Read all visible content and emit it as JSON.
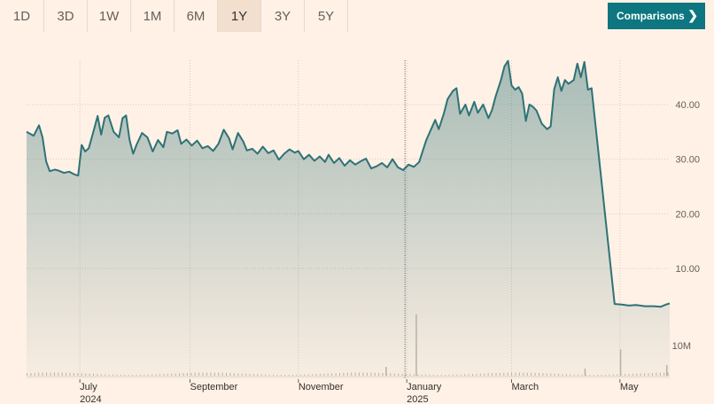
{
  "ranges": [
    "1D",
    "3D",
    "1W",
    "1M",
    "6M",
    "1Y",
    "3Y",
    "5Y"
  ],
  "active_range": "1Y",
  "comparisons_label": "Comparisons",
  "comparisons_icon": "chevron-right-icon",
  "colors": {
    "background": "#fff1e5",
    "line": "#2e7276",
    "accent": "#0d7680",
    "volume": "#b8b0a8"
  },
  "chart_data": {
    "type": "area",
    "y_ticks": [
      "40.00",
      "30.00",
      "20.00",
      "10.00"
    ],
    "y_tick_values": [
      40,
      30,
      20,
      10
    ],
    "ylim": [
      0,
      50
    ],
    "volume_tick": "10M",
    "x_ticks": [
      {
        "label": "July",
        "sub": "2024",
        "date": "2024-07-01"
      },
      {
        "label": "September",
        "sub": "",
        "date": "2024-09-01"
      },
      {
        "label": "November",
        "sub": "",
        "date": "2024-11-01"
      },
      {
        "label": "January",
        "sub": "2025",
        "date": "2025-01-01"
      },
      {
        "label": "March",
        "sub": "",
        "date": "2025-03-01"
      },
      {
        "label": "May",
        "sub": "",
        "date": "2025-05-01"
      }
    ],
    "start_date": "2024-06-01",
    "end_date": "2025-05-29",
    "series": [
      {
        "values": [
          [
            "2024-06-01",
            35.0
          ],
          [
            "2024-06-05",
            34.3
          ],
          [
            "2024-06-08",
            36.2
          ],
          [
            "2024-06-10",
            34.0
          ],
          [
            "2024-06-12",
            29.6
          ],
          [
            "2024-06-14",
            27.8
          ],
          [
            "2024-06-17",
            28.1
          ],
          [
            "2024-06-19",
            27.9
          ],
          [
            "2024-06-22",
            27.5
          ],
          [
            "2024-06-25",
            27.7
          ],
          [
            "2024-06-28",
            27.2
          ],
          [
            "2024-06-30",
            27.0
          ],
          [
            "2024-07-02",
            32.6
          ],
          [
            "2024-07-04",
            31.4
          ],
          [
            "2024-07-06",
            32.0
          ],
          [
            "2024-07-09",
            35.5
          ],
          [
            "2024-07-11",
            37.9
          ],
          [
            "2024-07-13",
            34.5
          ],
          [
            "2024-07-15",
            37.6
          ],
          [
            "2024-07-17",
            38.0
          ],
          [
            "2024-07-20",
            35.0
          ],
          [
            "2024-07-23",
            34.0
          ],
          [
            "2024-07-25",
            37.5
          ],
          [
            "2024-07-27",
            38.0
          ],
          [
            "2024-07-29",
            33.5
          ],
          [
            "2024-07-31",
            31.0
          ],
          [
            "2024-08-02",
            32.7
          ],
          [
            "2024-08-05",
            34.8
          ],
          [
            "2024-08-08",
            34.0
          ],
          [
            "2024-08-11",
            31.4
          ],
          [
            "2024-08-14",
            33.5
          ],
          [
            "2024-08-17",
            32.2
          ],
          [
            "2024-08-19",
            35.0
          ],
          [
            "2024-08-22",
            34.7
          ],
          [
            "2024-08-25",
            35.3
          ],
          [
            "2024-08-27",
            32.8
          ],
          [
            "2024-08-30",
            33.6
          ],
          [
            "2024-09-02",
            32.5
          ],
          [
            "2024-09-05",
            33.4
          ],
          [
            "2024-09-08",
            32.0
          ],
          [
            "2024-09-11",
            32.4
          ],
          [
            "2024-09-14",
            31.5
          ],
          [
            "2024-09-17",
            32.8
          ],
          [
            "2024-09-20",
            35.4
          ],
          [
            "2024-09-23",
            33.8
          ],
          [
            "2024-09-25",
            31.8
          ],
          [
            "2024-09-28",
            34.8
          ],
          [
            "2024-10-01",
            33.2
          ],
          [
            "2024-10-03",
            31.6
          ],
          [
            "2024-10-06",
            31.9
          ],
          [
            "2024-10-09",
            31.0
          ],
          [
            "2024-10-12",
            32.3
          ],
          [
            "2024-10-15",
            31.1
          ],
          [
            "2024-10-18",
            31.6
          ],
          [
            "2024-10-21",
            29.9
          ],
          [
            "2024-10-24",
            31.0
          ],
          [
            "2024-10-27",
            31.8
          ],
          [
            "2024-10-30",
            31.2
          ],
          [
            "2024-11-01",
            31.5
          ],
          [
            "2024-11-04",
            30.0
          ],
          [
            "2024-11-07",
            30.8
          ],
          [
            "2024-11-10",
            29.7
          ],
          [
            "2024-11-13",
            30.5
          ],
          [
            "2024-11-16",
            29.5
          ],
          [
            "2024-11-18",
            30.8
          ],
          [
            "2024-11-21",
            29.3
          ],
          [
            "2024-11-24",
            30.2
          ],
          [
            "2024-11-27",
            28.8
          ],
          [
            "2024-11-30",
            29.8
          ],
          [
            "2024-12-03",
            29.0
          ],
          [
            "2024-12-06",
            29.6
          ],
          [
            "2024-12-09",
            30.1
          ],
          [
            "2024-12-12",
            28.3
          ],
          [
            "2024-12-15",
            28.7
          ],
          [
            "2024-12-18",
            29.3
          ],
          [
            "2024-12-21",
            28.5
          ],
          [
            "2024-12-24",
            30.0
          ],
          [
            "2024-12-27",
            28.5
          ],
          [
            "2024-12-30",
            28.0
          ],
          [
            "2025-01-02",
            29.0
          ],
          [
            "2025-01-05",
            28.6
          ],
          [
            "2025-01-08",
            29.5
          ],
          [
            "2025-01-10",
            31.5
          ],
          [
            "2025-01-12",
            33.5
          ],
          [
            "2025-01-14",
            35.0
          ],
          [
            "2025-01-17",
            37.2
          ],
          [
            "2025-01-19",
            35.5
          ],
          [
            "2025-01-22",
            38.5
          ],
          [
            "2025-01-24",
            41.0
          ],
          [
            "2025-01-27",
            42.5
          ],
          [
            "2025-01-29",
            43.0
          ],
          [
            "2025-01-31",
            38.3
          ],
          [
            "2025-02-03",
            40.0
          ],
          [
            "2025-02-05",
            38.0
          ],
          [
            "2025-02-08",
            40.5
          ],
          [
            "2025-02-10",
            38.5
          ],
          [
            "2025-02-13",
            40.0
          ],
          [
            "2025-02-16",
            37.5
          ],
          [
            "2025-02-18",
            39.0
          ],
          [
            "2025-02-20",
            41.5
          ],
          [
            "2025-02-23",
            44.5
          ],
          [
            "2025-02-25",
            47.0
          ],
          [
            "2025-02-27",
            48.0
          ],
          [
            "2025-03-01",
            43.5
          ],
          [
            "2025-03-03",
            42.7
          ],
          [
            "2025-03-05",
            43.2
          ],
          [
            "2025-03-07",
            42.0
          ],
          [
            "2025-03-09",
            37.0
          ],
          [
            "2025-03-11",
            40.0
          ],
          [
            "2025-03-13",
            39.6
          ],
          [
            "2025-03-15",
            38.9
          ],
          [
            "2025-03-18",
            36.5
          ],
          [
            "2025-03-21",
            35.5
          ],
          [
            "2025-03-23",
            36.0
          ],
          [
            "2025-03-25",
            42.8
          ],
          [
            "2025-03-27",
            45.0
          ],
          [
            "2025-03-29",
            42.5
          ],
          [
            "2025-03-31",
            44.5
          ],
          [
            "2025-04-02",
            43.8
          ],
          [
            "2025-04-05",
            44.5
          ],
          [
            "2025-04-07",
            47.5
          ],
          [
            "2025-04-09",
            45.0
          ],
          [
            "2025-04-11",
            47.8
          ],
          [
            "2025-04-13",
            42.7
          ],
          [
            "2025-04-15",
            43.0
          ],
          [
            "2025-04-28",
            3.5
          ],
          [
            "2025-05-02",
            3.4
          ],
          [
            "2025-05-06",
            3.2
          ],
          [
            "2025-05-10",
            3.3
          ],
          [
            "2025-05-15",
            3.1
          ],
          [
            "2025-05-20",
            3.1
          ],
          [
            "2025-05-24",
            3.0
          ],
          [
            "2025-05-27",
            3.4
          ],
          [
            "2025-05-29",
            3.6
          ]
        ]
      }
    ],
    "volume_spikes": [
      {
        "date": "2025-01-06",
        "volume_m": 10.5
      },
      {
        "date": "2025-05-01",
        "volume_m": 4.5
      },
      {
        "date": "2025-05-27",
        "volume_m": 1.8
      },
      {
        "date": "2024-12-20",
        "volume_m": 1.5
      },
      {
        "date": "2025-04-11",
        "volume_m": 1.2
      }
    ],
    "marker_date": "2024-12-31"
  }
}
